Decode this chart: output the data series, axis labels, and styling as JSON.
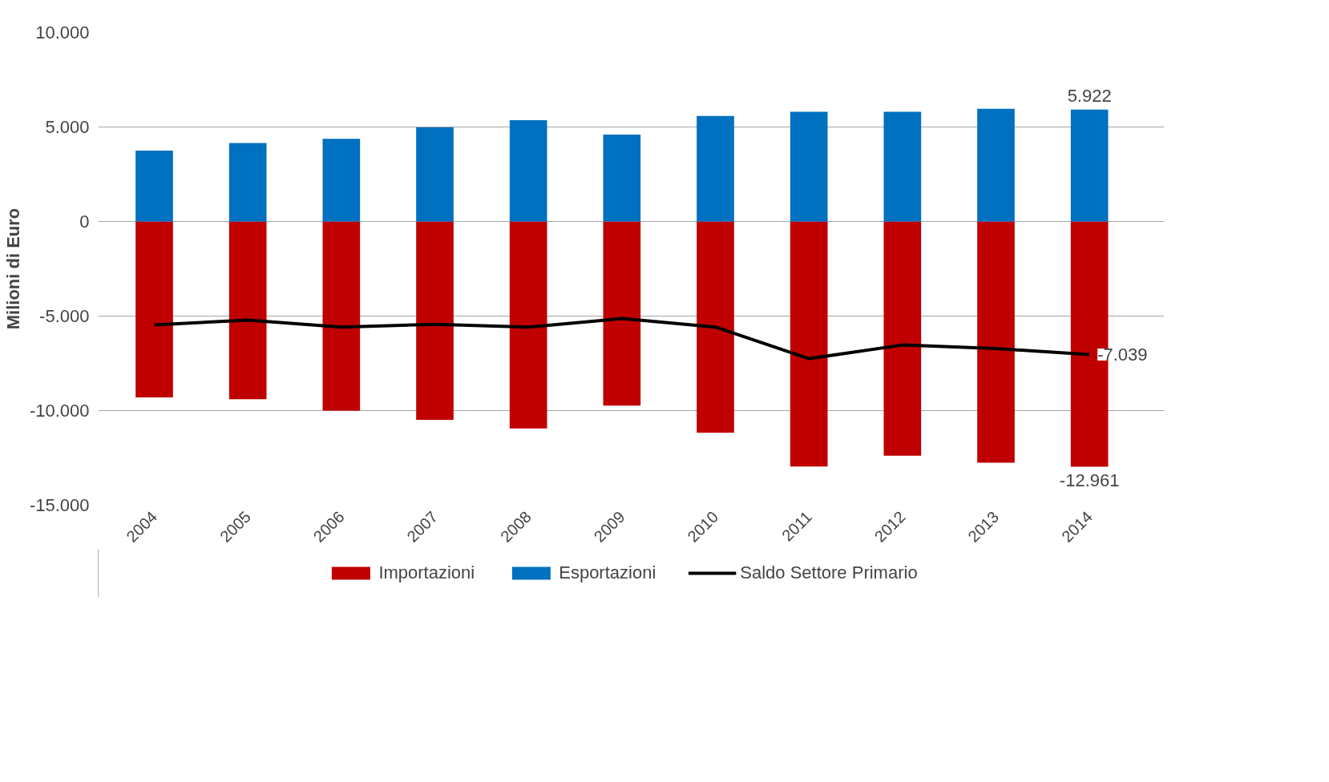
{
  "chart_data": {
    "type": "bar",
    "ylabel": "Milioni di Euro",
    "categories": [
      "2004",
      "2005",
      "2006",
      "2007",
      "2008",
      "2009",
      "2010",
      "2011",
      "2012",
      "2013",
      "2014"
    ],
    "series": [
      {
        "name": "Importazioni",
        "color": "#c00000",
        "values": [
          -9300,
          -9400,
          -10000,
          -10490,
          -10940,
          -9740,
          -11170,
          -12960,
          -12380,
          -12750,
          -12961
        ],
        "value_labels": [
          null,
          null,
          null,
          null,
          null,
          null,
          null,
          null,
          null,
          null,
          "-12.961"
        ]
      },
      {
        "name": "Esportazioni",
        "color": "#0070c0",
        "values": [
          3750,
          4150,
          4380,
          4980,
          5360,
          4600,
          5580,
          5810,
          5810,
          5960,
          5922
        ],
        "value_labels": [
          null,
          null,
          null,
          null,
          null,
          null,
          null,
          null,
          null,
          null,
          "5.922"
        ]
      },
      {
        "name": "Saldo Settore Primario",
        "type": "line",
        "color": "#000000",
        "values": [
          -5470,
          -5210,
          -5580,
          -5430,
          -5580,
          -5130,
          -5580,
          -7250,
          -6530,
          -6720,
          -7039
        ],
        "value_labels": [
          null,
          null,
          null,
          null,
          null,
          null,
          null,
          null,
          null,
          null,
          "-7.039"
        ]
      }
    ],
    "stacked": true,
    "ylim": [
      -15000,
      10000
    ],
    "yticks": [
      {
        "value": -15000,
        "label": "-15.000"
      },
      {
        "value": -10000,
        "label": "-10.000"
      },
      {
        "value": -5000,
        "label": "-5.000"
      },
      {
        "value": 0,
        "label": "0"
      },
      {
        "value": 5000,
        "label": "5.000"
      },
      {
        "value": 10000,
        "label": "10.000"
      }
    ],
    "grid": "y",
    "legend": "bottom",
    "marker": "none",
    "line_style": "solid"
  }
}
